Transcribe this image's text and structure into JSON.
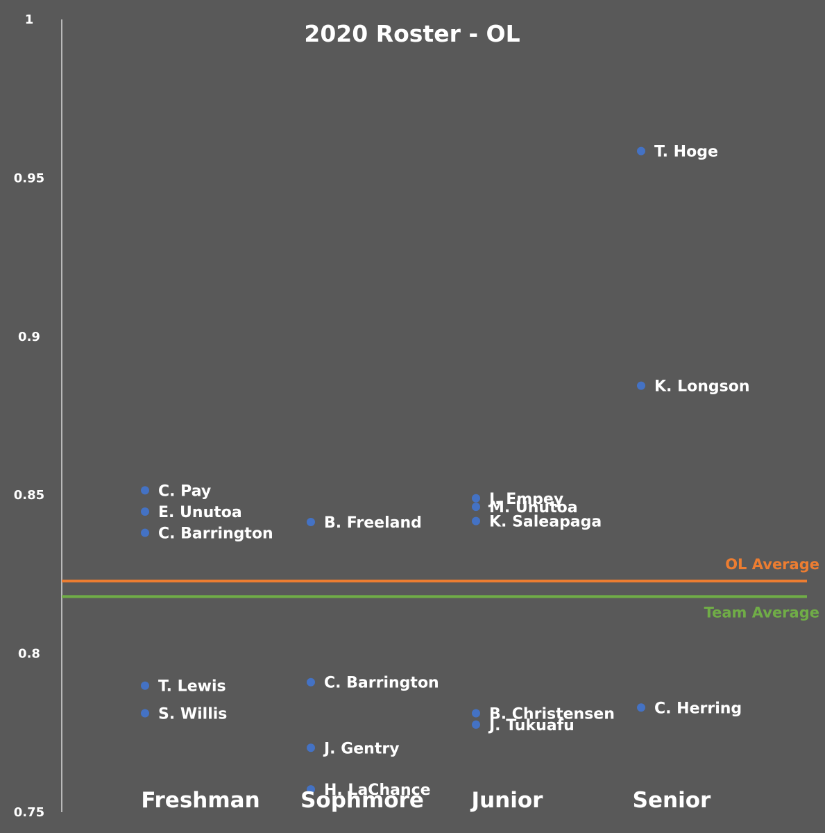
{
  "chart_data": {
    "type": "scatter",
    "title": "2020 Roster - OL",
    "categories": [
      "Freshman",
      "Sophmore",
      "Junior",
      "Senior"
    ],
    "ylim": [
      0.75,
      1
    ],
    "yticks": [
      "0.75",
      "0.8",
      "0.85",
      "0.9",
      "0.95",
      "1"
    ],
    "grid": false,
    "point_color": "#4472c4",
    "points": [
      {
        "label": "C. Pay",
        "category": "Freshman",
        "y": 0.8515
      },
      {
        "label": "E. Unutoa",
        "category": "Freshman",
        "y": 0.8448
      },
      {
        "label": "C. Barrington",
        "category": "Freshman",
        "y": 0.8381
      },
      {
        "label": "T. Lewis",
        "category": "Freshman",
        "y": 0.7899
      },
      {
        "label": "S. Willis",
        "category": "Freshman",
        "y": 0.7812
      },
      {
        "label": "B. Freeland",
        "category": "Sophmore",
        "y": 0.8415
      },
      {
        "label": "C. Barrington",
        "category": "Sophmore",
        "y": 0.791
      },
      {
        "label": "J. Gentry",
        "category": "Sophmore",
        "y": 0.7703
      },
      {
        "label": "H. LaChance",
        "category": "Sophmore",
        "y": 0.7572
      },
      {
        "label": "J. Empey",
        "category": "Junior",
        "y": 0.849
      },
      {
        "label": "M. Unutoa",
        "category": "Junior",
        "y": 0.8463
      },
      {
        "label": "K. Saleapaga",
        "category": "Junior",
        "y": 0.8418
      },
      {
        "label": "B. Christensen",
        "category": "Junior",
        "y": 0.7812
      },
      {
        "label": "J. Tukuafu",
        "category": "Junior",
        "y": 0.7776
      },
      {
        "label": "T. Hoge",
        "category": "Senior",
        "y": 0.9585
      },
      {
        "label": "K. Longson",
        "category": "Senior",
        "y": 0.8845
      },
      {
        "label": "C. Herring",
        "category": "Senior",
        "y": 0.783
      }
    ],
    "reference_lines": [
      {
        "name": "OL Average",
        "y": 0.8229,
        "color": "#ed7d31"
      },
      {
        "name": "Team Average",
        "y": 0.818,
        "color": "#70ad47"
      }
    ]
  }
}
